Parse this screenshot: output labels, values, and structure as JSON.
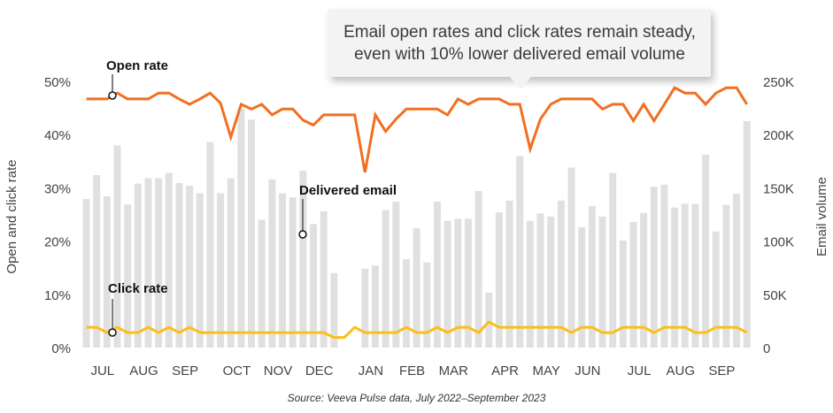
{
  "callout": {
    "line1": "Email open rates and click rates remain steady,",
    "line2": "even with 10% lower delivered email volume"
  },
  "source": "Source: Veeva Pulse data, July 2022–September 2023",
  "chart_data": {
    "type": "bar+line",
    "title": "Email open rates and click rates remain steady, even with 10% lower delivered email volume",
    "ylabel": "Open and click rate",
    "y2label": "Email volume",
    "ylim": [
      0,
      50
    ],
    "y2lim": [
      0,
      250000
    ],
    "yticks": [
      "0%",
      "10%",
      "20%",
      "30%",
      "40%",
      "50%"
    ],
    "y2ticks": [
      "0",
      "50K",
      "100K",
      "150K",
      "200K",
      "250K"
    ],
    "xticks": [
      {
        "label": "JUL",
        "week": 2
      },
      {
        "label": "AUG",
        "week": 6
      },
      {
        "label": "SEP",
        "week": 10
      },
      {
        "label": "OCT",
        "week": 15
      },
      {
        "label": "NOV",
        "week": 19
      },
      {
        "label": "DEC",
        "week": 23
      },
      {
        "label": "JAN",
        "week": 28
      },
      {
        "label": "FEB",
        "week": 32
      },
      {
        "label": "MAR",
        "week": 36
      },
      {
        "label": "APR",
        "week": 41
      },
      {
        "label": "MAY",
        "week": 45
      },
      {
        "label": "JUN",
        "week": 49
      },
      {
        "label": "JUL",
        "week": 54
      },
      {
        "label": "AUG",
        "week": 58
      },
      {
        "label": "SEP",
        "week": 62
      }
    ],
    "annotations": {
      "open": "Open rate",
      "delivered": "Delivered email",
      "click": "Click rate"
    },
    "colors": {
      "bars": "#e0e0e0",
      "open": "#f26f21",
      "click": "#fbbf1a"
    },
    "series": [
      {
        "name": "Delivered email",
        "type": "bar",
        "unit": "K",
        "values": [
          139.5,
          162,
          142,
          190,
          134.5,
          154,
          159,
          159,
          164,
          154.5,
          152,
          145,
          193,
          145,
          159,
          224,
          214,
          120,
          158,
          145,
          141,
          166,
          116,
          128,
          70,
          0,
          0,
          74,
          77,
          129,
          137,
          83,
          112,
          80,
          137,
          119,
          121,
          121,
          147,
          51.5,
          127,
          138,
          180,
          119,
          126,
          123,
          138,
          169,
          113,
          133,
          123,
          164,
          100.5,
          118,
          126.5,
          151,
          153,
          131.5,
          135,
          135,
          181,
          109,
          134,
          144.5,
          212.6
        ]
      },
      {
        "name": "Open rate",
        "type": "line",
        "unit": "%",
        "values": [
          46.7,
          46.7,
          46.7,
          47.8,
          46.7,
          46.7,
          46.7,
          47.8,
          47.8,
          46.7,
          45.7,
          46.7,
          47.8,
          45.9,
          39.5,
          45.7,
          44.8,
          45.7,
          43.7,
          44.8,
          44.8,
          42.7,
          41.8,
          43.7,
          43.7,
          43.7,
          43.7,
          32.9,
          43.7,
          40.6,
          42.9,
          44.8,
          44.8,
          44.8,
          44.8,
          43.7,
          46.7,
          45.7,
          46.7,
          46.7,
          46.7,
          45.7,
          45.7,
          37.3,
          42.9,
          45.7,
          46.7,
          46.7,
          46.7,
          46.7,
          44.8,
          45.7,
          45.7,
          42.6,
          45.7,
          42.6,
          45.7,
          48.8,
          47.8,
          47.8,
          45.7,
          47.8,
          48.8,
          48.8,
          45.7
        ]
      },
      {
        "name": "Click rate",
        "type": "line",
        "unit": "%",
        "values": [
          3.8,
          3.8,
          2.8,
          3.8,
          2.8,
          2.8,
          3.8,
          2.8,
          3.8,
          2.8,
          3.8,
          2.8,
          2.8,
          2.8,
          2.8,
          2.8,
          2.8,
          2.8,
          2.8,
          2.8,
          2.8,
          2.8,
          2.8,
          2.8,
          1.9,
          1.9,
          3.8,
          2.8,
          2.8,
          2.8,
          2.8,
          3.8,
          2.8,
          2.8,
          3.8,
          2.8,
          3.8,
          3.8,
          2.8,
          4.8,
          3.8,
          3.8,
          3.8,
          3.8,
          3.8,
          3.8,
          3.8,
          2.8,
          3.8,
          3.8,
          2.8,
          2.8,
          3.8,
          3.8,
          3.8,
          2.8,
          3.8,
          3.8,
          3.8,
          2.8,
          2.8,
          3.8,
          3.8,
          3.8,
          2.8
        ]
      }
    ]
  }
}
